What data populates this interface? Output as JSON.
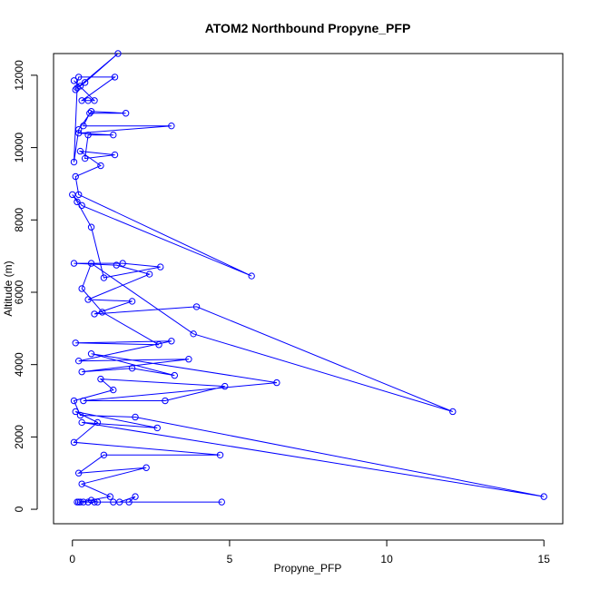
{
  "chart_data": {
    "type": "line",
    "title": "ATOM2 Northbound Propyne_PFP",
    "xlabel": "Propyne_PFP",
    "ylabel": "Altitude (m)",
    "xlim": [
      -0.6,
      15.6
    ],
    "ylim": [
      -400,
      12600
    ],
    "x_ticks": [
      0,
      5,
      10,
      15
    ],
    "y_ticks": [
      0,
      2000,
      4000,
      6000,
      8000,
      10000,
      12000
    ],
    "grid": false,
    "legend": "none",
    "series": [
      {
        "color": "#0000ff",
        "marker": "open-circle",
        "points": [
          [
            0.1,
            11600
          ],
          [
            0.2,
            11950
          ],
          [
            1.35,
            11950
          ],
          [
            0.3,
            11300
          ],
          [
            0.5,
            11300
          ],
          [
            0.7,
            11300
          ],
          [
            0.05,
            11850
          ],
          [
            0.25,
            11700
          ],
          [
            0.4,
            11800
          ],
          [
            1.45,
            12600
          ],
          [
            0.15,
            11650
          ],
          [
            0.05,
            9600
          ],
          [
            0.2,
            10500
          ],
          [
            0.6,
            11000
          ],
          [
            1.7,
            10950
          ],
          [
            0.55,
            10950
          ],
          [
            0.35,
            10600
          ],
          [
            3.15,
            10600
          ],
          [
            0.2,
            10400
          ],
          [
            1.3,
            10350
          ],
          [
            0.5,
            10350
          ],
          [
            0.4,
            9700
          ],
          [
            1.35,
            9800
          ],
          [
            0.25,
            9900
          ],
          [
            0.9,
            9500
          ],
          [
            0.1,
            9200
          ],
          [
            0.2,
            8700
          ],
          [
            5.7,
            6450
          ],
          [
            0.3,
            8400
          ],
          [
            0.0,
            8700
          ],
          [
            0.15,
            8500
          ],
          [
            0.6,
            7800
          ],
          [
            1.0,
            6400
          ],
          [
            2.8,
            6700
          ],
          [
            1.6,
            6800
          ],
          [
            0.05,
            6800
          ],
          [
            1.4,
            6750
          ],
          [
            2.45,
            6500
          ],
          [
            0.5,
            5800
          ],
          [
            1.9,
            5750
          ],
          [
            0.7,
            5400
          ],
          [
            3.95,
            5600
          ],
          [
            12.1,
            2700
          ],
          [
            3.85,
            4850
          ],
          [
            0.6,
            6800
          ],
          [
            0.3,
            6100
          ],
          [
            0.95,
            5450
          ],
          [
            2.75,
            4550
          ],
          [
            0.1,
            4600
          ],
          [
            3.15,
            4650
          ],
          [
            0.2,
            4100
          ],
          [
            3.7,
            4150
          ],
          [
            0.3,
            3800
          ],
          [
            1.9,
            3900
          ],
          [
            3.25,
            3700
          ],
          [
            0.6,
            4300
          ],
          [
            6.5,
            3500
          ],
          [
            0.35,
            3000
          ],
          [
            2.95,
            3000
          ],
          [
            4.85,
            3400
          ],
          [
            0.9,
            3600
          ],
          [
            1.3,
            3300
          ],
          [
            0.05,
            3000
          ],
          [
            0.25,
            2600
          ],
          [
            2.0,
            2550
          ],
          [
            15.0,
            350
          ],
          [
            0.3,
            2400
          ],
          [
            2.7,
            2250
          ],
          [
            0.1,
            2700
          ],
          [
            0.8,
            2400
          ],
          [
            0.05,
            1850
          ],
          [
            4.7,
            1500
          ],
          [
            1.0,
            1500
          ],
          [
            0.2,
            1000
          ],
          [
            2.35,
            1150
          ],
          [
            0.3,
            700
          ],
          [
            1.2,
            350
          ],
          [
            0.25,
            200
          ],
          [
            0.5,
            200
          ],
          [
            4.75,
            200
          ],
          [
            1.3,
            200
          ],
          [
            1.5,
            200
          ],
          [
            2.0,
            350
          ],
          [
            1.8,
            200
          ],
          [
            0.15,
            200
          ],
          [
            0.35,
            200
          ],
          [
            0.7,
            200
          ],
          [
            0.8,
            200
          ],
          [
            0.6,
            250
          ],
          [
            0.2,
            200
          ]
        ]
      }
    ]
  }
}
